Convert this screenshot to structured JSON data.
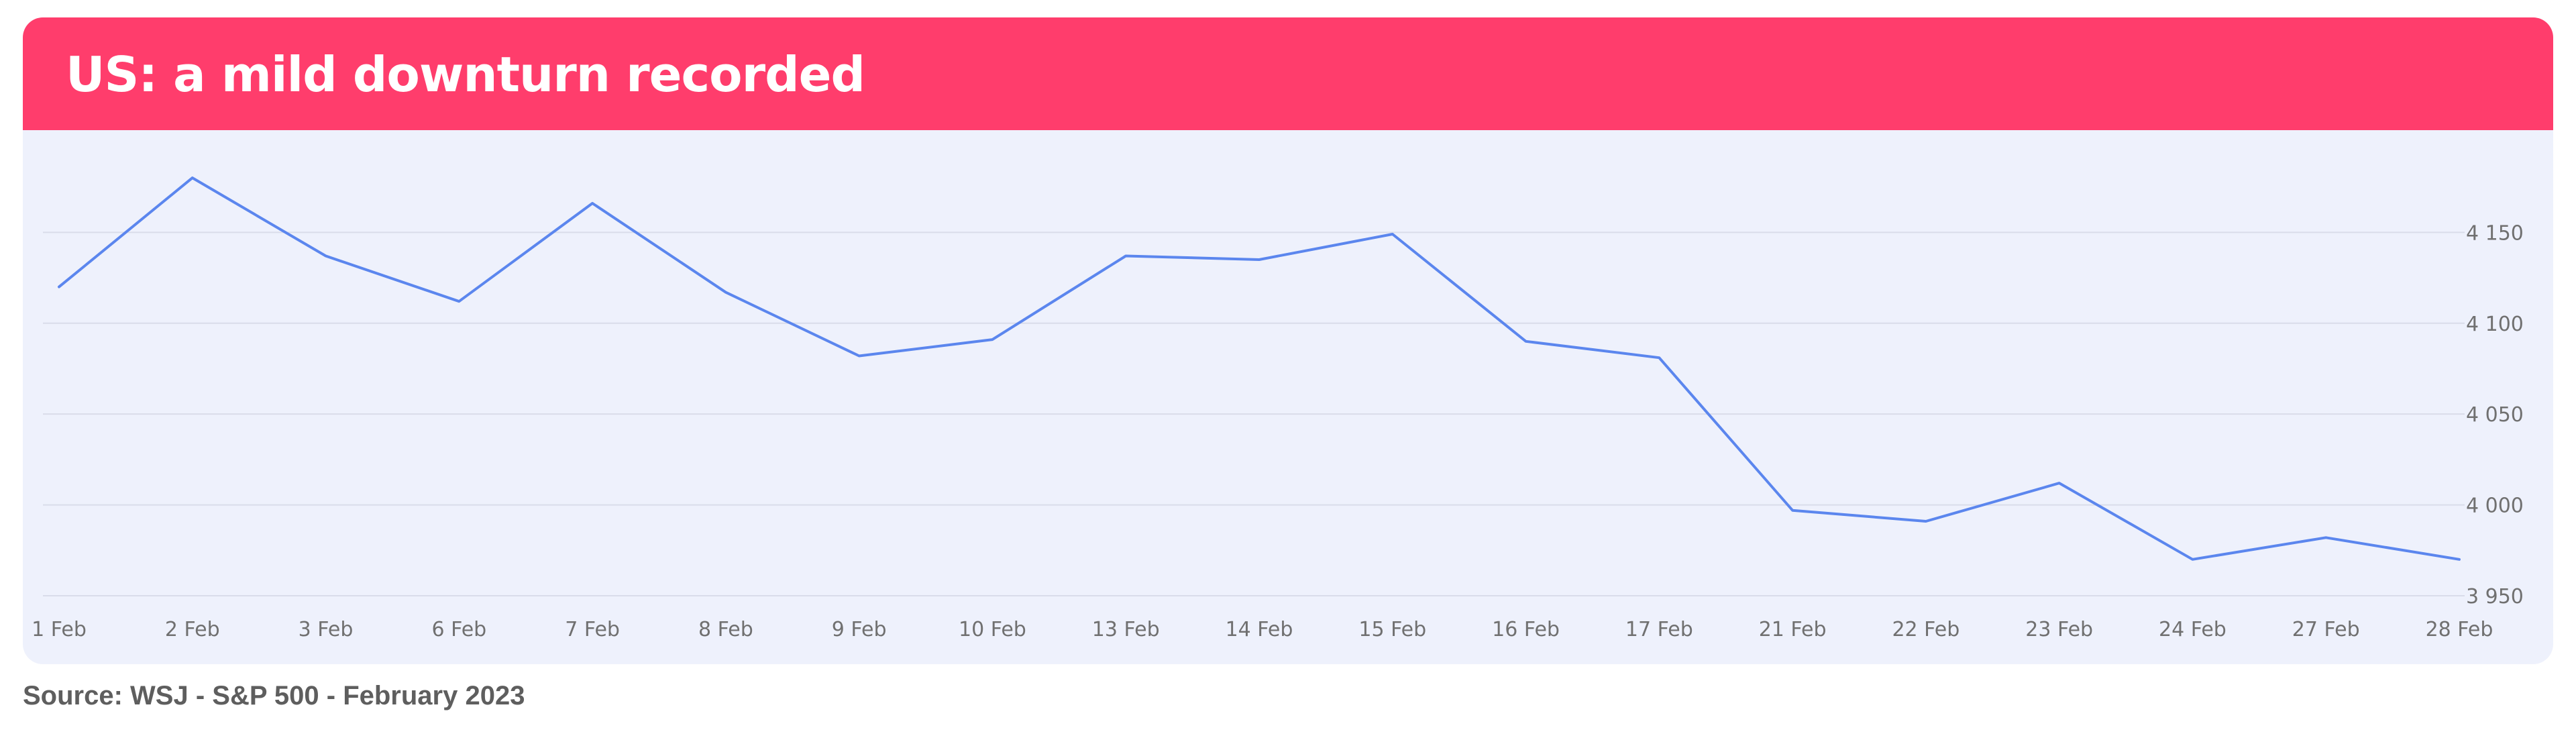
{
  "header": {
    "title": "US: a mild downturn recorded"
  },
  "footer": {
    "source": "Source: WSJ - S&P 500 - February 2023"
  },
  "colors": {
    "header_bg": "#ff3d6c",
    "plot_bg": "#eef1fc",
    "line": "#5b86ee",
    "gridline": "#d9dcea",
    "tick_text": "#707070"
  },
  "chart_data": {
    "type": "line",
    "title": "",
    "xlabel": "",
    "ylabel": "",
    "categories": [
      "1 Feb",
      "2 Feb",
      "3 Feb",
      "6 Feb",
      "7 Feb",
      "8 Feb",
      "9 Feb",
      "10 Feb",
      "13 Feb",
      "14 Feb",
      "15 Feb",
      "16 Feb",
      "17 Feb",
      "21 Feb",
      "22 Feb",
      "23 Feb",
      "24 Feb",
      "27 Feb",
      "28 Feb"
    ],
    "series": [
      {
        "values": [
          4120,
          4180,
          4137,
          4112,
          4166,
          4117,
          4082,
          4091,
          4137,
          4135,
          4149,
          4090,
          4081,
          3997,
          3991,
          4012,
          3970,
          3982,
          3970
        ]
      }
    ],
    "ylim": [
      3950,
      4190
    ],
    "yticks": [
      3950,
      4000,
      4050,
      4100,
      4150
    ],
    "ytick_labels": [
      "3 950",
      "4 000",
      "4 050",
      "4 100",
      "4 150"
    ],
    "y_axis_side": "right",
    "grid": true,
    "legend": "none"
  }
}
